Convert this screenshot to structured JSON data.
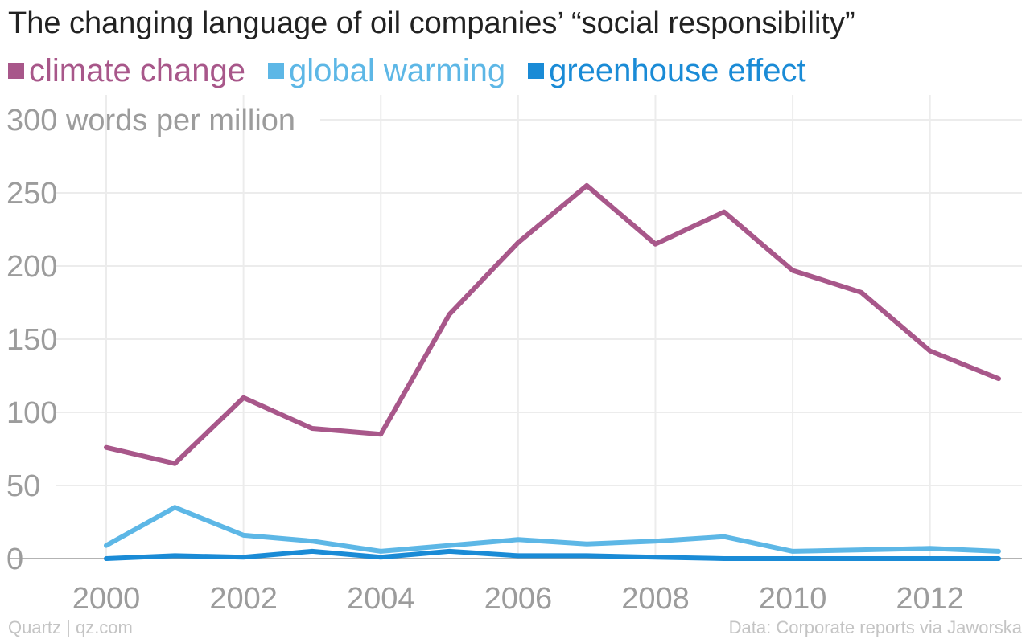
{
  "title": "The changing language of oil companies’ “social responsibility”",
  "footer": {
    "source_left": "Quartz | qz.com",
    "source_right": "Data: Corporate reports via Jaworska"
  },
  "chart_data": {
    "type": "line",
    "title": "The changing language of oil companies’ “social responsibility”",
    "ylabel": "words per million",
    "xlabel": "",
    "x": [
      2000,
      2001,
      2002,
      2003,
      2004,
      2005,
      2006,
      2007,
      2008,
      2009,
      2010,
      2011,
      2012,
      2013
    ],
    "x_ticks": [
      2000,
      2002,
      2004,
      2006,
      2008,
      2010,
      2012
    ],
    "xlim": [
      2000,
      2013
    ],
    "y_ticks": [
      0,
      50,
      100,
      150,
      200,
      250,
      300
    ],
    "ylim": [
      0,
      300
    ],
    "grid": true,
    "legend_position": "top-left",
    "series": [
      {
        "name": "climate change",
        "color": "#a8578a",
        "values": [
          76,
          65,
          110,
          89,
          85,
          167,
          216,
          255,
          215,
          237,
          197,
          182,
          142,
          123
        ]
      },
      {
        "name": "global warming",
        "color": "#5db7e6",
        "values": [
          9,
          35,
          16,
          12,
          5,
          9,
          13,
          10,
          12,
          15,
          5,
          6,
          7,
          5
        ]
      },
      {
        "name": "greenhouse effect",
        "color": "#1a8bd6",
        "values": [
          0,
          2,
          1,
          5,
          1,
          5,
          2,
          2,
          1,
          0,
          0,
          0,
          0,
          0
        ]
      }
    ]
  }
}
